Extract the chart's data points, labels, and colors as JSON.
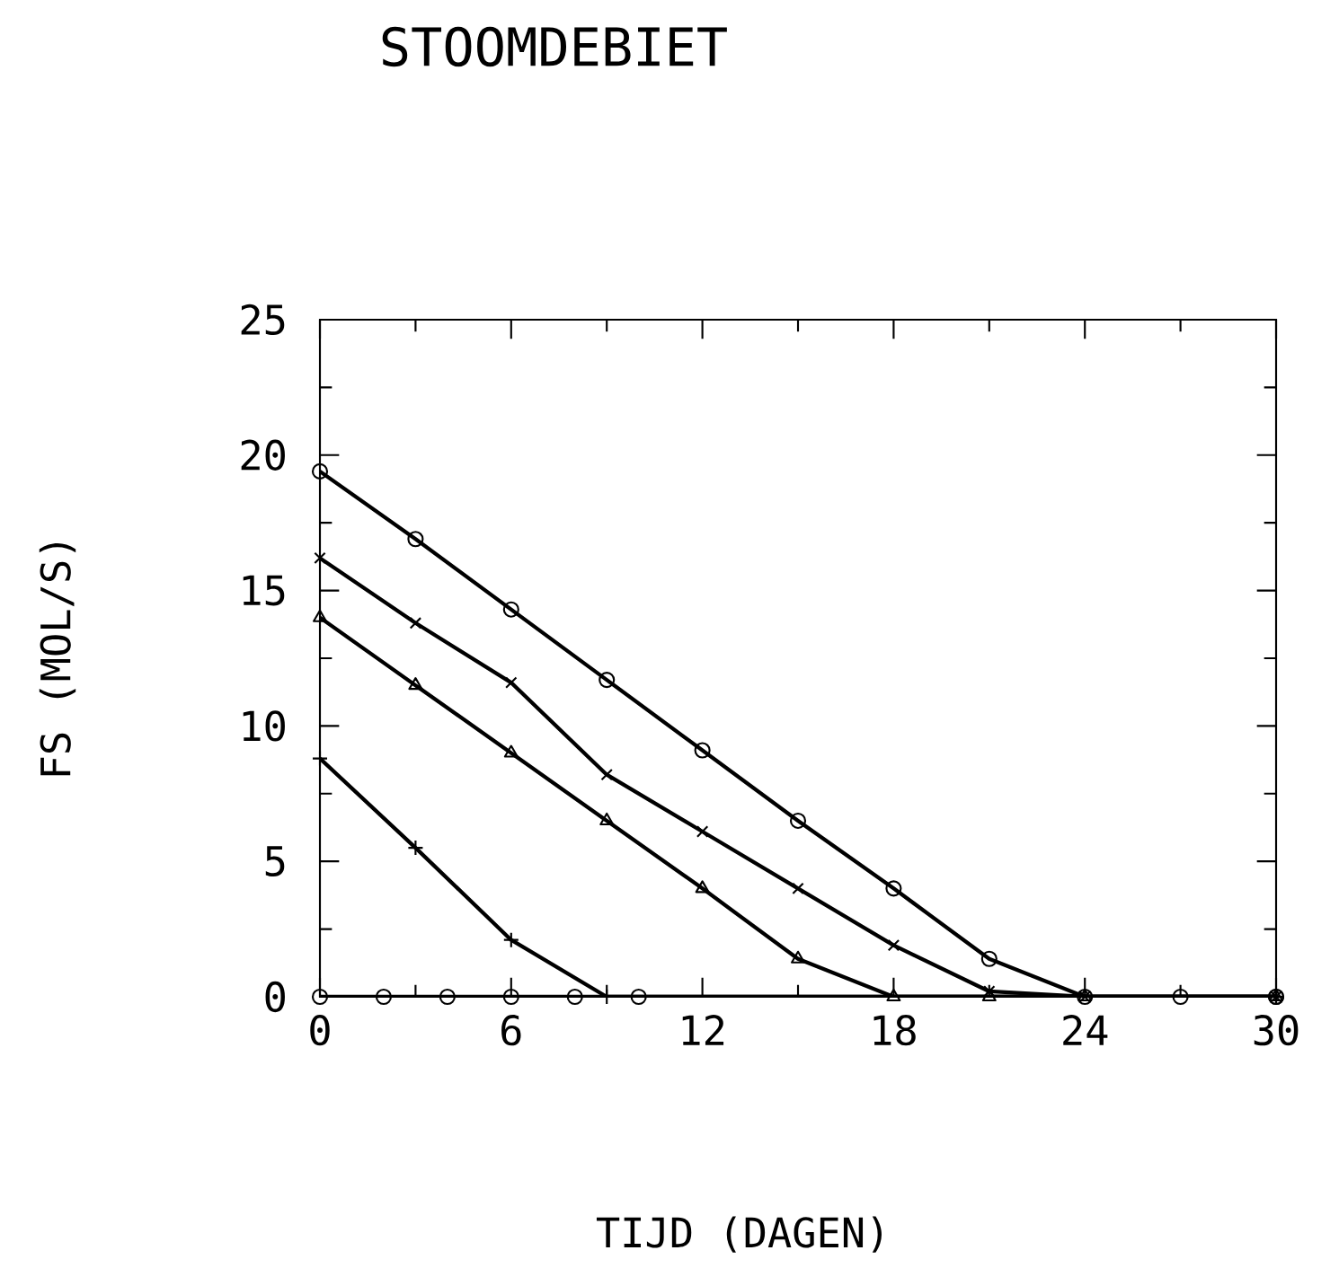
{
  "chart_data": {
    "type": "line",
    "title": "STOOMDEBIET",
    "xlabel": "TIJD (DAGEN)",
    "ylabel": "FS (MOL/S)",
    "xlim": [
      0,
      30
    ],
    "ylim": [
      0,
      25
    ],
    "xticks": [
      0,
      6,
      12,
      18,
      24,
      30
    ],
    "yticks": [
      0,
      5,
      10,
      15,
      20,
      25
    ],
    "grid": false,
    "series": [
      {
        "color": "#000000",
        "marker": "circle",
        "x": [
          0,
          3,
          6,
          9,
          12,
          15,
          18,
          21,
          24,
          27,
          30
        ],
        "values": [
          19.4,
          16.9,
          14.3,
          11.7,
          9.1,
          6.5,
          4.0,
          1.4,
          0,
          0,
          0
        ]
      },
      {
        "color": "#000000",
        "marker": "cross",
        "x": [
          0,
          3,
          6,
          9,
          12,
          15,
          18,
          21,
          24,
          30
        ],
        "values": [
          16.2,
          13.8,
          11.6,
          8.2,
          6.1,
          4.0,
          1.9,
          0.2,
          0,
          0
        ]
      },
      {
        "color": "#000000",
        "marker": "triangle",
        "x": [
          0,
          3,
          6,
          9,
          12,
          15,
          18,
          21,
          24,
          30
        ],
        "values": [
          14.0,
          11.5,
          9.0,
          6.5,
          4.0,
          1.4,
          0,
          0,
          0,
          0
        ]
      },
      {
        "color": "#000000",
        "marker": "plus",
        "x": [
          0,
          3,
          6,
          9,
          30
        ],
        "values": [
          8.8,
          5.5,
          2.1,
          0,
          0
        ]
      },
      {
        "color": "#000000",
        "marker": "circle",
        "x": [
          0,
          2,
          4,
          6,
          8,
          10,
          30
        ],
        "values": [
          0,
          0,
          0,
          0,
          0,
          0,
          0
        ]
      }
    ]
  }
}
